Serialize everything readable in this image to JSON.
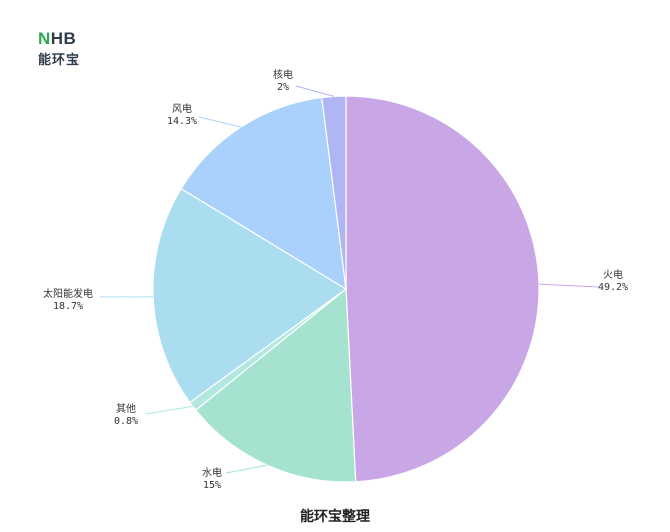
{
  "logo": {
    "mark_primary": "N",
    "mark_rest": "HB",
    "subtitle": "能环宝"
  },
  "caption": "能环宝整理",
  "colors": {
    "fire": "#c9a7e6",
    "water": "#a5e3d0",
    "other": "#b2e8e0",
    "solar": "#a9ddef",
    "wind": "#a9d1fb",
    "nuclear": "#afb6f3"
  },
  "chart_data": {
    "type": "pie",
    "start_angle_deg": 0,
    "direction": "clockwise",
    "slices": [
      {
        "name": "火电",
        "value": 49.2,
        "label": "49.2%",
        "color_key": "fire"
      },
      {
        "name": "水电",
        "value": 15,
        "label": "15%",
        "color_key": "water"
      },
      {
        "name": "其他",
        "value": 0.8,
        "label": "0.8%",
        "color_key": "other"
      },
      {
        "name": "太阳能发电",
        "value": 18.7,
        "label": "18.7%",
        "color_key": "solar"
      },
      {
        "name": "风电",
        "value": 14.3,
        "label": "14.3%",
        "color_key": "wind"
      },
      {
        "name": "核电",
        "value": 2,
        "label": "2%",
        "color_key": "nuclear"
      }
    ]
  }
}
